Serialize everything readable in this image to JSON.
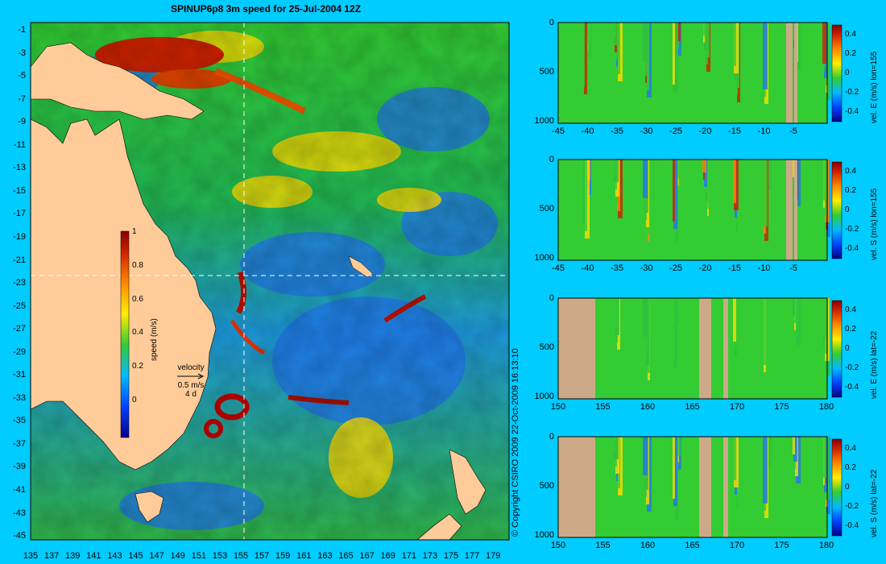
{
  "title": "SPINUP6p8 3m speed for 25-Jul-2004 12Z",
  "copyright": "© Copyright CSIRO 2009   22-Oct-2009 16:13:10",
  "map": {
    "lat_labels": [
      "-1",
      "-3",
      "-5",
      "-7",
      "-9",
      "-11",
      "-13",
      "-15",
      "-17",
      "-19",
      "-21",
      "-23",
      "-25",
      "-27",
      "-29",
      "-31",
      "-33",
      "-35",
      "-37",
      "-39",
      "-41",
      "-43",
      "-45"
    ],
    "lon_labels": [
      "135",
      "137",
      "139",
      "141",
      "143",
      "145",
      "147",
      "149",
      "151",
      "153",
      "155",
      "157",
      "159",
      "161",
      "163",
      "165",
      "167",
      "169",
      "171",
      "173",
      "175",
      "177",
      "179"
    ],
    "colorbar": {
      "label": "speed (m/s)",
      "ticks": [
        "1",
        "0.8",
        "0.6",
        "0.4",
        "0.2",
        "0"
      ]
    },
    "velocity_key": {
      "title": "velocity",
      "speed": "0.5 m/s",
      "duration": "4 d"
    },
    "colors": {
      "land": "#ffcc99",
      "background": "#00ccff"
    }
  },
  "sections": [
    {
      "label": "vel. E (m/s) lon=155",
      "x_labels": [
        "-45",
        "-40",
        "-35",
        "-30",
        "-25",
        "-20",
        "-15",
        "-10",
        "-5"
      ],
      "y_labels": [
        "0",
        "500",
        "1000"
      ],
      "cbar_ticks": [
        "0.4",
        "0.2",
        "0",
        "-0.2",
        "-0.4"
      ]
    },
    {
      "label": "vel. S (m/s) lon=155",
      "x_labels": [
        "-45",
        "-40",
        "-35",
        "-30",
        "-25",
        "-20",
        "-15",
        "-10",
        "-5"
      ],
      "y_labels": [
        "0",
        "500",
        "1000"
      ],
      "cbar_ticks": [
        "0.4",
        "0.2",
        "0",
        "-0.2",
        "-0.4"
      ]
    },
    {
      "label": "vel. E (m/s) lat=-22",
      "x_labels": [
        "150",
        "155",
        "160",
        "165",
        "170",
        "175",
        "180"
      ],
      "y_labels": [
        "0",
        "500",
        "1000"
      ],
      "cbar_ticks": [
        "0.4",
        "0.2",
        "0",
        "-0.2",
        "-0.4"
      ]
    },
    {
      "label": "vel. S (m/s) lat=-22",
      "x_labels": [
        "150",
        "155",
        "160",
        "165",
        "170",
        "175",
        "180"
      ],
      "y_labels": [
        "0",
        "500",
        "1000"
      ],
      "cbar_ticks": [
        "0.4",
        "0.2",
        "0",
        "-0.2",
        "-0.4"
      ]
    }
  ]
}
